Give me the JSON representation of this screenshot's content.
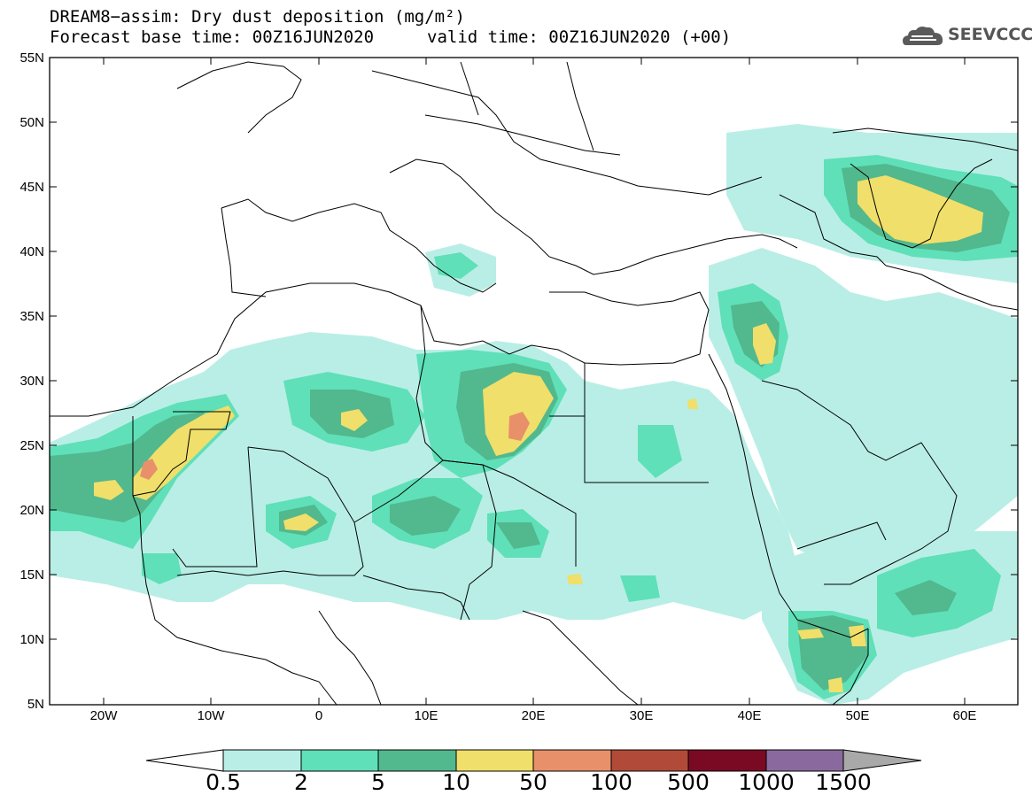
{
  "header": {
    "title_line1": "DREAM8−assim: Dry dust deposition (mg/m²)",
    "base_time": "Forecast base time: 00Z16JUN2020",
    "valid_time": "valid time: 00Z16JUN2020 (+00)",
    "logo_text": "SEEVCCC"
  },
  "map": {
    "lat_labels": [
      "55N",
      "50N",
      "45N",
      "40N",
      "35N",
      "30N",
      "25N",
      "20N",
      "15N",
      "10N",
      "5N"
    ],
    "lon_labels": [
      "20W",
      "10W",
      "0",
      "10E",
      "20E",
      "30E",
      "40E",
      "50E",
      "60E"
    ]
  },
  "colorbar": {
    "labels": [
      "0.5",
      "2",
      "5",
      "10",
      "50",
      "100",
      "500",
      "1000",
      "1500"
    ],
    "colors": [
      "#b9eee6",
      "#5fe0b8",
      "#52b88d",
      "#f0df6a",
      "#e8906a",
      "#b14a38",
      "#7a0a24",
      "#8a6a9e"
    ],
    "under_color": "#ffffff",
    "over_color": "#a9a9a9"
  },
  "palette": {
    "level1": "#b9eee6",
    "level2": "#5fe0b8",
    "level3": "#52b88d",
    "level4": "#f0df6a",
    "level5": "#e8906a"
  }
}
